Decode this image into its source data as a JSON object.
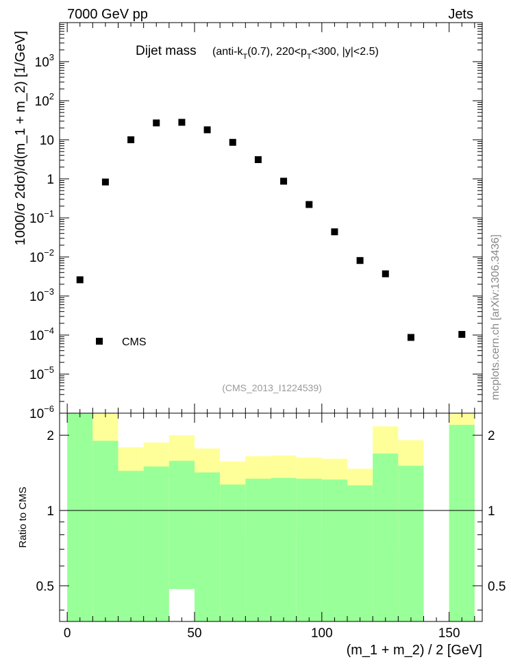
{
  "header": {
    "left": "7000 GeV pp",
    "right": "Jets"
  },
  "side_label": "mcplots.cern.ch [arXiv:1306.3436]",
  "chart_data": [
    {
      "type": "scatter",
      "title": "Dijet mass",
      "subtitle_parts": [
        "(anti-k",
        "T",
        "(0.7), 220<p",
        "T",
        "<300, |y|<2.5)"
      ],
      "ylabel": "1000/σ 2dσ)/d(m_1 + m_2) [1/GeV]",
      "y_scale": "log",
      "ylim": [
        1e-06,
        10000.0
      ],
      "xlim": [
        -3,
        163
      ],
      "y_tick_labels": [
        {
          "v": 1e-06,
          "base": "10",
          "exp": "−6"
        },
        {
          "v": 1e-05,
          "base": "10",
          "exp": "−5"
        },
        {
          "v": 0.0001,
          "base": "10",
          "exp": "−4"
        },
        {
          "v": 0.001,
          "base": "10",
          "exp": "−3"
        },
        {
          "v": 0.01,
          "base": "10",
          "exp": "−2"
        },
        {
          "v": 0.1,
          "base": "10",
          "exp": "−1"
        },
        {
          "v": 1,
          "base": "1",
          "exp": ""
        },
        {
          "v": 10,
          "base": "10",
          "exp": ""
        },
        {
          "v": 100,
          "base": "10",
          "exp": "2"
        },
        {
          "v": 1000,
          "base": "10",
          "exp": "3"
        }
      ],
      "watermark": "(CMS_2013_I1224539)",
      "legend": {
        "entry": "CMS",
        "marker": "square",
        "placement": "bottom-left"
      },
      "series": [
        {
          "name": "CMS",
          "x": [
            5,
            15,
            25,
            35,
            45,
            55,
            65,
            75,
            85,
            95,
            105,
            115,
            125,
            135,
            155
          ],
          "y": [
            0.0026,
            0.83,
            10,
            27,
            28,
            18,
            8.6,
            3.1,
            0.87,
            0.22,
            0.044,
            0.0081,
            0.0037,
            8.7e-05,
            0.000104
          ]
        }
      ]
    },
    {
      "type": "area",
      "ylabel": "Ratio to CMS",
      "xlabel": "(m_1 + m_2) / 2 [GeV]",
      "y_scale": "log",
      "ylim": [
        0.36,
        2.45
      ],
      "xlim": [
        -3,
        163
      ],
      "x_ticks": [
        0,
        50,
        100,
        150
      ],
      "y_ticks": [
        0.5,
        1,
        2
      ],
      "y_tick_labels": [
        "0.5",
        "1",
        "2"
      ],
      "reference_line": 1,
      "bands": {
        "colors": {
          "inner": "#99ff99",
          "outer": "#ffff99"
        },
        "bins": [
          {
            "lo": 0,
            "hi": 10,
            "inner": [
              0.3,
              2.5
            ],
            "outer": [
              0.3,
              2.5
            ]
          },
          {
            "lo": 10,
            "hi": 20,
            "inner": [
              0.3,
              1.9
            ],
            "outer": [
              0.3,
              2.5
            ]
          },
          {
            "lo": 20,
            "hi": 30,
            "inner": [
              0.3,
              1.44
            ],
            "outer": [
              0.71,
              1.79
            ]
          },
          {
            "lo": 30,
            "hi": 40,
            "inner": [
              0.3,
              1.5
            ],
            "outer": [
              0.65,
              1.87
            ]
          },
          {
            "lo": 40,
            "hi": 50,
            "inner": [
              0.485,
              1.58
            ],
            "outer": [
              0.49,
              2.0
            ]
          },
          {
            "lo": 50,
            "hi": 60,
            "inner": [
              0.3,
              1.42
            ],
            "outer": [
              0.71,
              1.77
            ]
          },
          {
            "lo": 60,
            "hi": 70,
            "inner": [
              0.3,
              1.27
            ],
            "outer": [
              0.3,
              1.57
            ]
          },
          {
            "lo": 70,
            "hi": 80,
            "inner": [
              0.3,
              1.34
            ],
            "outer": [
              0.8,
              1.65
            ]
          },
          {
            "lo": 80,
            "hi": 90,
            "inner": [
              0.3,
              1.35
            ],
            "outer": [
              0.8,
              1.66
            ]
          },
          {
            "lo": 90,
            "hi": 100,
            "inner": [
              0.3,
              1.34
            ],
            "outer": [
              0.84,
              1.63
            ]
          },
          {
            "lo": 100,
            "hi": 110,
            "inner": [
              0.3,
              1.33
            ],
            "outer": [
              0.83,
              1.61
            ]
          },
          {
            "lo": 110,
            "hi": 120,
            "inner": [
              0.3,
              1.26
            ],
            "outer": [
              0.41,
              1.47
            ]
          },
          {
            "lo": 120,
            "hi": 130,
            "inner": [
              0.3,
              1.69
            ],
            "outer": [
              0.3,
              2.17
            ]
          },
          {
            "lo": 130,
            "hi": 140,
            "inner": [
              0.3,
              1.51
            ],
            "outer": [
              0.66,
              1.91
            ]
          },
          {
            "lo": 150,
            "hi": 160,
            "inner": [
              0.3,
              2.2
            ],
            "outer": [
              0.3,
              2.5
            ]
          }
        ]
      }
    }
  ]
}
